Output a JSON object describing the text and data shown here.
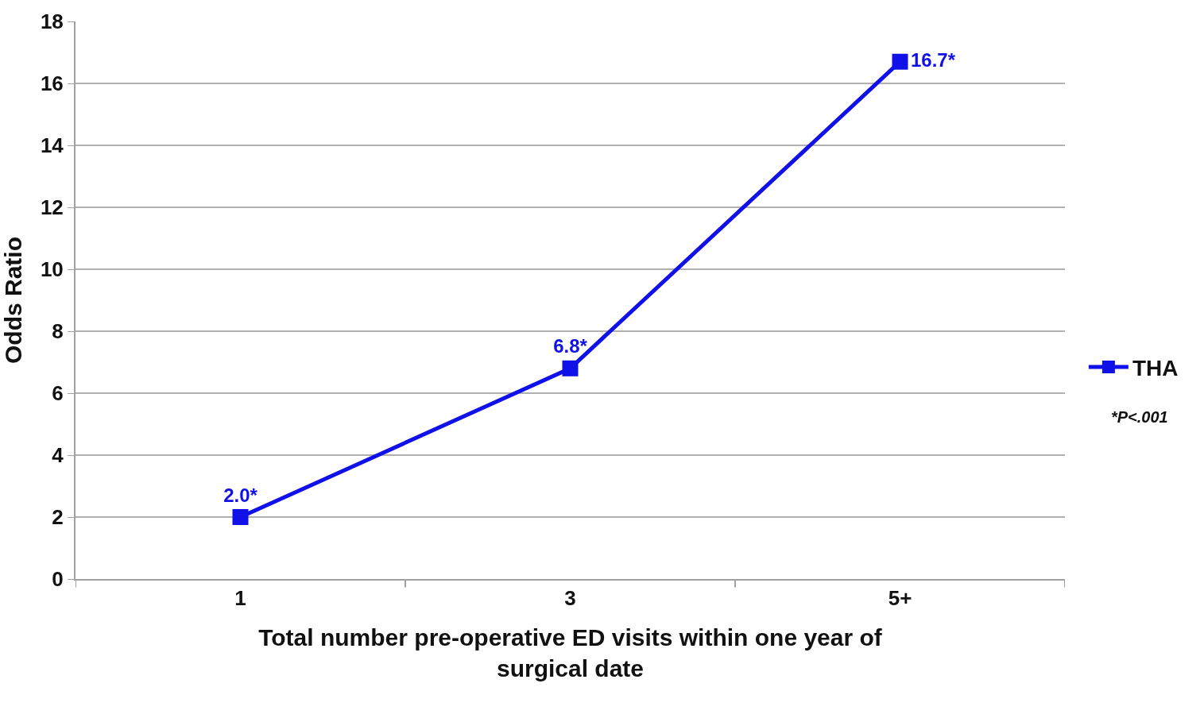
{
  "chart_data": {
    "type": "line",
    "xlabel": "Total number pre-operative ED visits within one year of surgical date",
    "ylabel": "Odds Ratio",
    "categories": [
      "1",
      "3",
      "5+"
    ],
    "series": [
      {
        "name": "THA",
        "color": "#1010e8",
        "values": [
          2.0,
          6.8,
          16.7
        ],
        "value_labels": [
          "2.0*",
          "6.8*",
          "16.7*"
        ]
      }
    ],
    "ylim": [
      0,
      18
    ],
    "yticks": [
      0,
      2,
      4,
      6,
      8,
      10,
      12,
      14,
      16,
      18
    ],
    "grid": "y",
    "legend": "right",
    "marker": "square",
    "line_style": "solid",
    "annotations": [
      "*P<.001"
    ]
  }
}
